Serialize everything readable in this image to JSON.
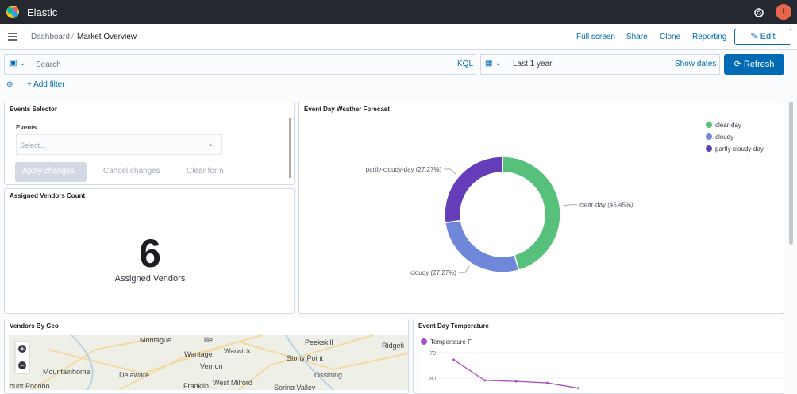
{
  "header": {
    "brand": "Elastic",
    "avatar": "t"
  },
  "nav": {
    "breadcrumbs": [
      "Dashboard",
      "Market Overview"
    ],
    "links": [
      "Full screen",
      "Share",
      "Clone",
      "Reporting"
    ],
    "edit": "Edit"
  },
  "query": {
    "placeholder": "Search",
    "language": "KQL",
    "date": "Last 1 year",
    "show_dates": "Show dates",
    "refresh": "Refresh",
    "add_filter": "+ Add filter"
  },
  "panels": {
    "events_selector": {
      "title": "Events Selector",
      "label": "Events",
      "placeholder": "Select...",
      "buttons": [
        "Apply changes",
        "Cancel changes",
        "Clear form"
      ]
    },
    "vendors_count": {
      "title": "Assigned Vendors Count",
      "value": 6,
      "label": "Assigned Vendors"
    },
    "weather": {
      "type": "pie",
      "title": "Event Day Weather Forecast",
      "categories": [
        "clear-day",
        "cloudy",
        "partly-cloudy-day"
      ],
      "values": [
        45.45,
        27.27,
        27.27
      ],
      "value_labels": [
        "clear-day (45.45%)",
        "cloudy (27.27%)",
        "partly-cloudy-day (27.27%)"
      ],
      "colors": [
        "#57c17b",
        "#6f87d8",
        "#663db8"
      ],
      "donut": true,
      "legend": "top-right"
    },
    "geo": {
      "title": "Vendors By Geo",
      "places": [
        "Montague",
        "ille",
        "Peekskill",
        "Ridgefi",
        "Wantage",
        "Warwick",
        "Stony Point",
        "Vernon",
        "Mountainhome",
        "Delaware",
        "Ossining",
        "Franklin",
        "West Milford",
        "Spring Valley",
        "ount Pocono"
      ]
    },
    "temperature": {
      "type": "line",
      "title": "Event Day Temperature",
      "categories": [
        null,
        null,
        null,
        null,
        null
      ],
      "series": [
        {
          "name": "Temperature F",
          "color": "#a94fc2",
          "values": [
            72.8,
            80.9,
            81.3,
            81.9,
            84
          ]
        }
      ],
      "ylim": [
        70,
        84
      ],
      "yticks": [
        70,
        80
      ],
      "y_inverted": true,
      "legend": "top-left"
    }
  }
}
